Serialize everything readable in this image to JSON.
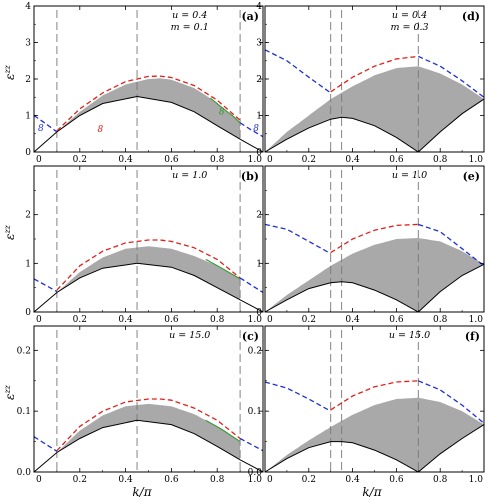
{
  "figure": {
    "xlabel": "k/π",
    "ylabel": "ε",
    "ylabel_sup": "zz"
  },
  "colors": {
    "band": "#a9a9a9",
    "lower_edge": "#000000",
    "red": "#e0201b",
    "blue": "#1f2fd6",
    "green": "#2f9a2f",
    "vline": "#777777"
  },
  "chart_data": [
    {
      "id": "a",
      "panel_label": "(a)",
      "type": "area",
      "annotations": [
        "u = 0.4",
        "m = 0.1"
      ],
      "ylim": [
        0,
        4
      ],
      "yticks": [
        "0",
        "1",
        "2",
        "3",
        "4"
      ],
      "xlim": [
        0,
        1
      ],
      "xticks": [
        "0",
        "0.2",
        "0.4",
        "0.6",
        "0.8",
        "1.0"
      ],
      "vlines": [
        0.1,
        0.45,
        0.9
      ],
      "curve_labels": [
        {
          "text": "8",
          "color": "red",
          "x": 0.29,
          "y": 0.55
        },
        {
          "text": "8",
          "color": "green",
          "x": 0.82,
          "y": 1.03
        },
        {
          "text": "8",
          "color": "blue",
          "x": 0.03,
          "y": 0.57
        },
        {
          "text": "8",
          "color": "blue",
          "x": 0.97,
          "y": 0.57
        }
      ],
      "series": [
        {
          "name": "lower",
          "x": [
            0,
            0.1,
            0.2,
            0.3,
            0.45,
            0.6,
            0.7,
            0.8,
            0.9,
            1.0
          ],
          "y": [
            0.0,
            0.55,
            1.0,
            1.33,
            1.52,
            1.36,
            1.1,
            0.72,
            0.35,
            0.0
          ]
        },
        {
          "name": "upper",
          "x": [
            0.1,
            0.2,
            0.3,
            0.4,
            0.5,
            0.55,
            0.6,
            0.7,
            0.8,
            0.9
          ],
          "y": [
            0.55,
            1.1,
            1.55,
            1.85,
            2.0,
            2.02,
            1.98,
            1.75,
            1.35,
            0.8
          ]
        },
        {
          "name": "red",
          "x": [
            0.1,
            0.2,
            0.3,
            0.4,
            0.5,
            0.55,
            0.6,
            0.7,
            0.8,
            0.9
          ],
          "y": [
            0.58,
            1.18,
            1.62,
            1.93,
            2.07,
            2.08,
            2.04,
            1.82,
            1.42,
            0.87
          ]
        },
        {
          "name": "blue",
          "x": [
            0.0,
            0.05,
            0.1
          ],
          "y": [
            1.0,
            0.78,
            0.55
          ]
        },
        {
          "name": "blue2",
          "x": [
            0.9,
            0.95,
            1.0
          ],
          "y": [
            0.8,
            0.6,
            0.42
          ]
        },
        {
          "name": "green",
          "x": [
            0.77,
            0.82,
            0.87,
            0.9
          ],
          "y": [
            1.48,
            1.22,
            0.98,
            0.8
          ]
        }
      ]
    },
    {
      "id": "d",
      "panel_label": "(d)",
      "type": "area",
      "annotations": [
        "u = 0.4",
        "m = 0.3"
      ],
      "ylim": [
        0,
        4
      ],
      "yticks": [
        "0",
        "1",
        "2",
        "3",
        "4"
      ],
      "xlim": [
        0,
        1
      ],
      "xticks": [
        "0",
        "0.2",
        "0.4",
        "0.6",
        "0.8",
        "1.0"
      ],
      "vlines": [
        0.3,
        0.35,
        0.7
      ],
      "series": [
        {
          "name": "lower",
          "x": [
            0.0,
            0.1,
            0.2,
            0.3,
            0.35,
            0.4,
            0.5,
            0.6,
            0.7,
            0.8,
            0.9,
            1.0
          ],
          "y": [
            0.0,
            0.35,
            0.66,
            0.9,
            0.95,
            0.92,
            0.72,
            0.4,
            0.0,
            0.55,
            1.05,
            1.45
          ]
        },
        {
          "name": "upper",
          "x": [
            0.0,
            0.1,
            0.2,
            0.3,
            0.4,
            0.5,
            0.6,
            0.7,
            0.8,
            0.9,
            1.0
          ],
          "y": [
            0.0,
            0.55,
            1.0,
            1.45,
            1.8,
            2.1,
            2.3,
            2.35,
            2.15,
            1.85,
            1.45
          ]
        },
        {
          "name": "blue",
          "x": [
            0.0,
            0.1,
            0.2,
            0.3
          ],
          "y": [
            2.8,
            2.5,
            2.05,
            1.62
          ]
        },
        {
          "name": "red",
          "x": [
            0.3,
            0.4,
            0.5,
            0.6,
            0.7
          ],
          "y": [
            1.65,
            2.05,
            2.35,
            2.55,
            2.62
          ]
        },
        {
          "name": "blue2",
          "x": [
            0.7,
            0.8,
            0.9,
            1.0
          ],
          "y": [
            2.62,
            2.35,
            1.95,
            1.5
          ]
        }
      ]
    },
    {
      "id": "b",
      "panel_label": "(b)",
      "type": "area",
      "annotations": [
        "u = 1.0"
      ],
      "ylim": [
        0,
        3
      ],
      "yticks": [
        "0",
        "1",
        "2"
      ],
      "xlim": [
        0,
        1
      ],
      "xticks": [
        "0",
        "0.2",
        "0.4",
        "0.6",
        "0.8",
        "1.0"
      ],
      "vlines": [
        0.1,
        0.45,
        0.9
      ],
      "series": [
        {
          "name": "lower",
          "x": [
            0,
            0.1,
            0.2,
            0.3,
            0.45,
            0.6,
            0.7,
            0.8,
            0.9,
            1.0
          ],
          "y": [
            0.0,
            0.4,
            0.7,
            0.9,
            1.0,
            0.92,
            0.75,
            0.5,
            0.25,
            0.0
          ]
        },
        {
          "name": "upper",
          "x": [
            0.1,
            0.2,
            0.3,
            0.4,
            0.5,
            0.6,
            0.7,
            0.8,
            0.9
          ],
          "y": [
            0.4,
            0.82,
            1.12,
            1.3,
            1.35,
            1.3,
            1.15,
            0.95,
            0.68
          ]
        },
        {
          "name": "red",
          "x": [
            0.1,
            0.2,
            0.3,
            0.4,
            0.5,
            0.55,
            0.6,
            0.7,
            0.8,
            0.9
          ],
          "y": [
            0.45,
            0.95,
            1.25,
            1.42,
            1.48,
            1.48,
            1.45,
            1.32,
            1.08,
            0.7
          ]
        },
        {
          "name": "blue",
          "x": [
            0.0,
            0.05,
            0.1
          ],
          "y": [
            0.68,
            0.55,
            0.42
          ]
        },
        {
          "name": "blue2",
          "x": [
            0.9,
            0.95,
            1.0
          ],
          "y": [
            0.7,
            0.55,
            0.4
          ]
        },
        {
          "name": "green",
          "x": [
            0.75,
            0.82,
            0.9
          ],
          "y": [
            1.08,
            0.9,
            0.68
          ]
        }
      ]
    },
    {
      "id": "e",
      "panel_label": "(e)",
      "type": "area",
      "annotations": [
        "u = 1.0"
      ],
      "ylim": [
        0,
        3
      ],
      "yticks": [
        "0",
        "1",
        "2"
      ],
      "xlim": [
        0,
        1
      ],
      "xticks": [
        "0",
        "0.2",
        "0.4",
        "0.6",
        "0.8",
        "1.0"
      ],
      "vlines": [
        0.3,
        0.35,
        0.7
      ],
      "series": [
        {
          "name": "lower",
          "x": [
            0.0,
            0.1,
            0.2,
            0.3,
            0.35,
            0.4,
            0.5,
            0.6,
            0.7,
            0.8,
            0.9,
            1.0
          ],
          "y": [
            0.0,
            0.25,
            0.48,
            0.6,
            0.62,
            0.6,
            0.45,
            0.25,
            0.0,
            0.42,
            0.75,
            0.98
          ]
        },
        {
          "name": "upper",
          "x": [
            0.0,
            0.1,
            0.2,
            0.3,
            0.4,
            0.5,
            0.6,
            0.7,
            0.8,
            0.9,
            1.0
          ],
          "y": [
            0.0,
            0.35,
            0.65,
            0.95,
            1.2,
            1.38,
            1.5,
            1.52,
            1.45,
            1.25,
            0.98
          ]
        },
        {
          "name": "blue",
          "x": [
            0.0,
            0.1,
            0.2,
            0.3
          ],
          "y": [
            1.8,
            1.7,
            1.45,
            1.2
          ]
        },
        {
          "name": "red",
          "x": [
            0.3,
            0.4,
            0.5,
            0.6,
            0.7
          ],
          "y": [
            1.22,
            1.5,
            1.68,
            1.78,
            1.8
          ]
        },
        {
          "name": "blue2",
          "x": [
            0.7,
            0.8,
            0.9,
            1.0
          ],
          "y": [
            1.8,
            1.65,
            1.3,
            0.95
          ]
        }
      ]
    },
    {
      "id": "c",
      "panel_label": "(c)",
      "type": "area",
      "annotations": [
        "u = 15.0"
      ],
      "ylim": [
        0,
        0.24
      ],
      "yticks": [
        "0.0",
        "0.1",
        "0.2"
      ],
      "xlim": [
        0,
        1
      ],
      "xticks": [
        "0",
        "0.2",
        "0.4",
        "0.6",
        "0.8",
        "1.0"
      ],
      "vlines": [
        0.1,
        0.45,
        0.9
      ],
      "series": [
        {
          "name": "lower",
          "x": [
            0,
            0.1,
            0.2,
            0.3,
            0.45,
            0.6,
            0.7,
            0.8,
            0.9,
            1.0
          ],
          "y": [
            0.0,
            0.032,
            0.055,
            0.073,
            0.085,
            0.078,
            0.063,
            0.042,
            0.02,
            0.0
          ]
        },
        {
          "name": "upper",
          "x": [
            0.1,
            0.2,
            0.3,
            0.4,
            0.5,
            0.6,
            0.7,
            0.8,
            0.9
          ],
          "y": [
            0.032,
            0.068,
            0.093,
            0.108,
            0.112,
            0.108,
            0.095,
            0.075,
            0.05
          ]
        },
        {
          "name": "red",
          "x": [
            0.1,
            0.2,
            0.3,
            0.4,
            0.5,
            0.55,
            0.6,
            0.7,
            0.8,
            0.9
          ],
          "y": [
            0.035,
            0.075,
            0.1,
            0.115,
            0.12,
            0.12,
            0.118,
            0.105,
            0.085,
            0.055
          ]
        },
        {
          "name": "blue",
          "x": [
            0.0,
            0.05,
            0.1
          ],
          "y": [
            0.058,
            0.046,
            0.034
          ]
        },
        {
          "name": "blue2",
          "x": [
            0.9,
            0.95,
            1.0
          ],
          "y": [
            0.055,
            0.045,
            0.035
          ]
        },
        {
          "name": "green",
          "x": [
            0.75,
            0.82,
            0.9
          ],
          "y": [
            0.085,
            0.07,
            0.05
          ]
        }
      ]
    },
    {
      "id": "f",
      "panel_label": "(f)",
      "type": "area",
      "annotations": [
        "u = 15.0"
      ],
      "ylim": [
        0,
        0.24
      ],
      "yticks": [
        "0.0",
        "0.1",
        "0.2"
      ],
      "xlim": [
        0,
        1
      ],
      "xticks": [
        "0",
        "0.2",
        "0.4",
        "0.6",
        "0.8",
        "1.0"
      ],
      "vlines": [
        0.3,
        0.35,
        0.7
      ],
      "series": [
        {
          "name": "lower",
          "x": [
            0.0,
            0.1,
            0.2,
            0.3,
            0.35,
            0.4,
            0.5,
            0.6,
            0.7,
            0.8,
            0.9,
            1.0
          ],
          "y": [
            0.0,
            0.022,
            0.04,
            0.05,
            0.05,
            0.048,
            0.036,
            0.02,
            0.0,
            0.03,
            0.055,
            0.078
          ]
        },
        {
          "name": "upper",
          "x": [
            0.0,
            0.1,
            0.2,
            0.3,
            0.4,
            0.5,
            0.6,
            0.7,
            0.8,
            0.9,
            1.0
          ],
          "y": [
            0.0,
            0.028,
            0.052,
            0.074,
            0.094,
            0.11,
            0.12,
            0.122,
            0.115,
            0.1,
            0.078
          ]
        },
        {
          "name": "blue",
          "x": [
            0.0,
            0.1,
            0.2,
            0.3
          ],
          "y": [
            0.148,
            0.138,
            0.12,
            0.1
          ]
        },
        {
          "name": "red",
          "x": [
            0.3,
            0.4,
            0.5,
            0.6,
            0.7
          ],
          "y": [
            0.102,
            0.125,
            0.14,
            0.148,
            0.15
          ]
        },
        {
          "name": "blue2",
          "x": [
            0.7,
            0.8,
            0.9,
            1.0
          ],
          "y": [
            0.15,
            0.135,
            0.11,
            0.08
          ]
        }
      ]
    }
  ]
}
